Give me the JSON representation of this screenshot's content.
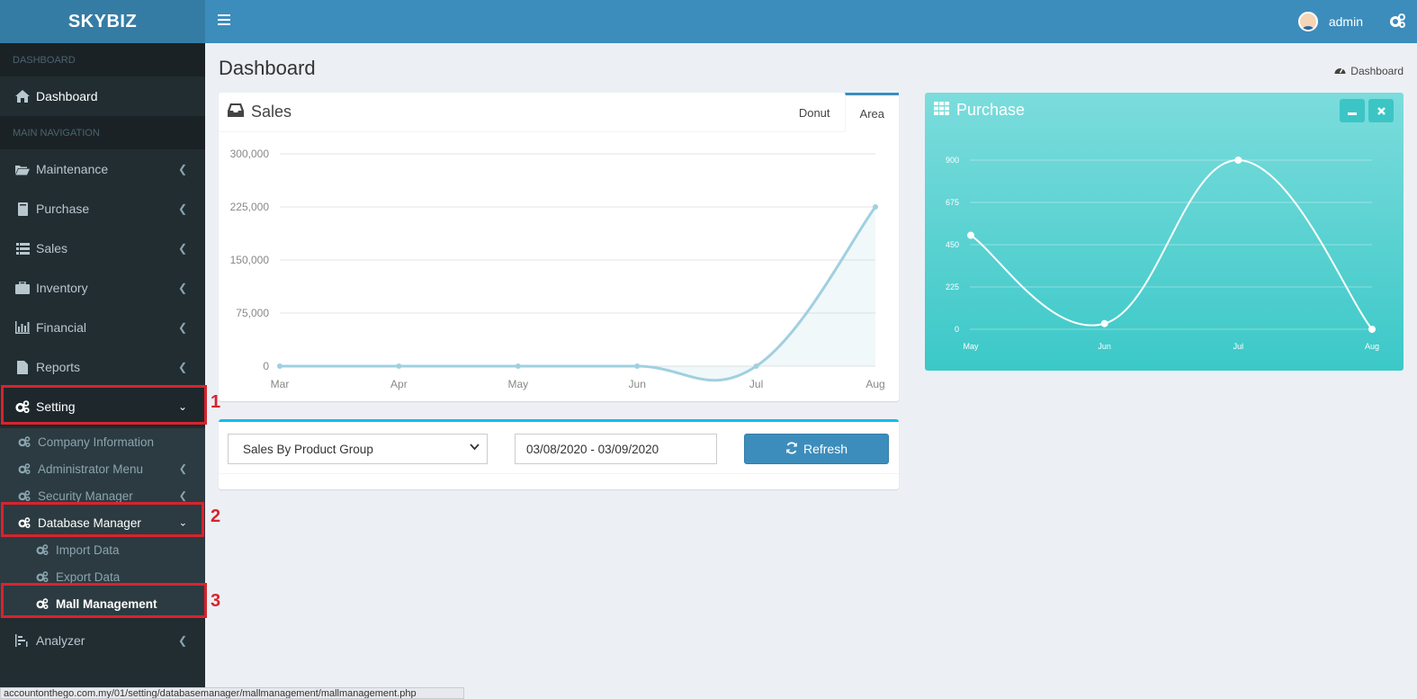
{
  "app": {
    "logo": "SKYBIZ"
  },
  "header": {
    "username": "admin"
  },
  "sidebar": {
    "section_dashboard": "DASHBOARD",
    "dashboard_label": "Dashboard",
    "section_main": "MAIN NAVIGATION",
    "items": [
      {
        "label": "Maintenance"
      },
      {
        "label": "Purchase"
      },
      {
        "label": "Sales"
      },
      {
        "label": "Inventory"
      },
      {
        "label": "Financial"
      },
      {
        "label": "Reports"
      }
    ],
    "setting": {
      "label": "Setting",
      "children": [
        {
          "label": "Company Information"
        },
        {
          "label": "Administrator Menu"
        },
        {
          "label": "Security Manager"
        }
      ],
      "database_manager": {
        "label": "Database Manager",
        "children": [
          {
            "label": "Import Data"
          },
          {
            "label": "Export Data"
          },
          {
            "label": "Mall Management"
          }
        ]
      }
    },
    "analyzer_label": "Analyzer"
  },
  "annotations": [
    "1",
    "2",
    "3"
  ],
  "main": {
    "title": "Dashboard",
    "breadcrumb": "Dashboard",
    "sales": {
      "title": "Sales",
      "tabs": [
        "Donut",
        "Area"
      ],
      "active_tab": "Area"
    },
    "filter": {
      "group_select": "Sales By Product Group",
      "date_range": "03/08/2020 - 03/09/2020",
      "refresh_label": "Refresh"
    },
    "purchase": {
      "title": "Purchase"
    }
  },
  "status_bar": "accountonthego.com.my/01/setting/databasemanager/mallmanagement/mallmanagement.php",
  "colors": {
    "sidebar": "#222d32",
    "header": "#3c8dbc",
    "accent_teal": "#3cc8c8",
    "annotation_red": "#d9232d"
  },
  "chart_data": [
    {
      "type": "area",
      "title": "Sales",
      "categories": [
        "Mar",
        "Apr",
        "May",
        "Jun",
        "Jul",
        "Aug"
      ],
      "values": [
        0,
        0,
        0,
        0,
        0,
        225000
      ],
      "yticks": [
        "300,000",
        "225,000",
        "150,000",
        "75,000",
        "0"
      ],
      "ylim": [
        0,
        300000
      ],
      "grid": true
    },
    {
      "type": "line",
      "title": "Purchase",
      "categories": [
        "May",
        "Jun",
        "Jul",
        "Aug"
      ],
      "values": [
        500,
        30,
        900,
        0
      ],
      "yticks": [
        "900",
        "675",
        "450",
        "225",
        "0"
      ],
      "ylim": [
        0,
        900
      ],
      "grid": true
    }
  ]
}
